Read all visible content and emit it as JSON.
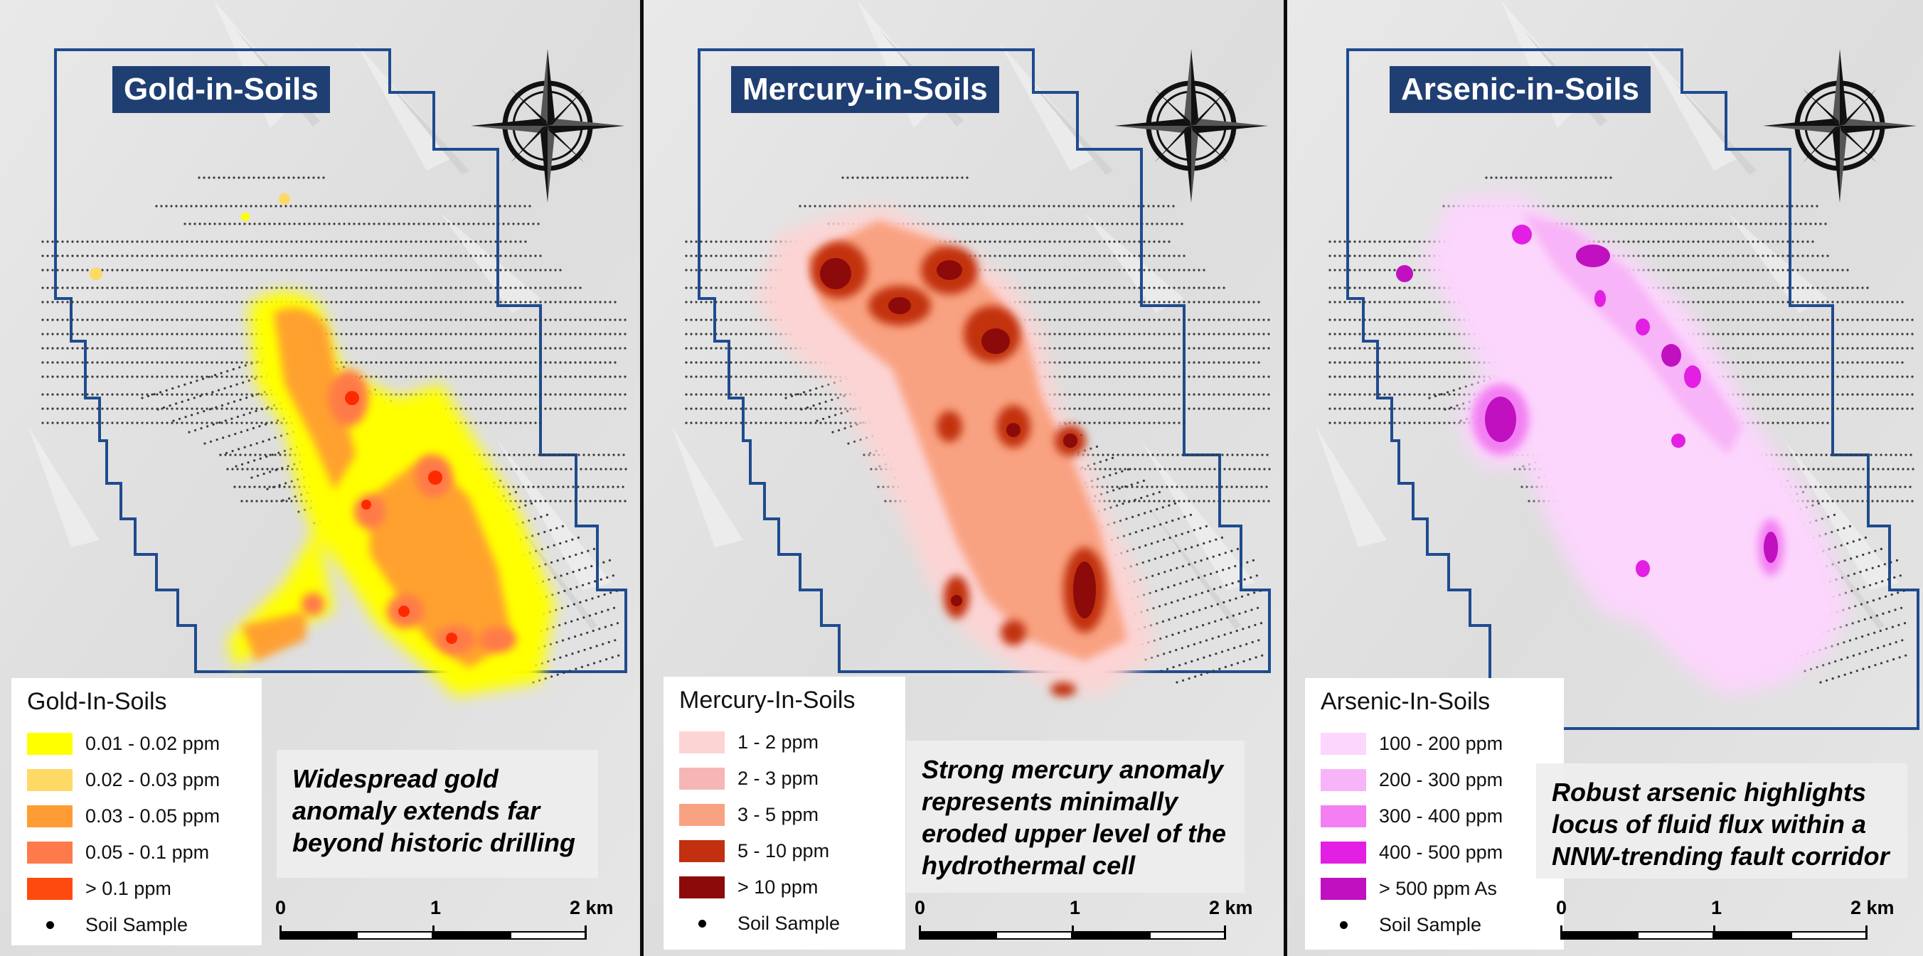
{
  "panels": [
    {
      "title": "Gold-in-Soils",
      "legend_title": "Gold-In-Soils",
      "legend": [
        {
          "label": "0.01 - 0.02 ppm",
          "color": "#ffff00"
        },
        {
          "label": "0.02 - 0.03 ppm",
          "color": "#ffd966"
        },
        {
          "label": "0.03 - 0.05 ppm",
          "color": "#ff9c33"
        },
        {
          "label": "0.05 - 0.1 ppm",
          "color": "#ff7a4a"
        },
        {
          "label": "> 0.1 ppm",
          "color": "#ff4a0f"
        }
      ],
      "soil_label": "Soil Sample",
      "note": [
        "Widespread gold",
        "anomaly extends far",
        "beyond historic drilling"
      ],
      "scale": [
        "0",
        "1",
        "2 km"
      ]
    },
    {
      "title": "Mercury-in-Soils",
      "legend_title": "Mercury-In-Soils",
      "legend": [
        {
          "label": "1 - 2 ppm",
          "color": "#fcd4d4"
        },
        {
          "label": "2 - 3 ppm",
          "color": "#f6b6b6"
        },
        {
          "label": "3 - 5 ppm",
          "color": "#f9a282"
        },
        {
          "label": "5 - 10 ppm",
          "color": "#c2300f"
        },
        {
          "label": "> 10 ppm",
          "color": "#8c0a0a"
        }
      ],
      "soil_label": "Soil Sample",
      "note": [
        "Strong mercury anomaly",
        "represents minimally",
        "eroded upper level of the",
        "hydrothermal cell"
      ],
      "scale": [
        "0",
        "1",
        "2 km"
      ]
    },
    {
      "title": "Arsenic-in-Soils",
      "legend_title": "Arsenic-In-Soils",
      "legend": [
        {
          "label": "100 - 200 ppm",
          "color": "#fcd6fc"
        },
        {
          "label": "200 - 300 ppm",
          "color": "#f8b4f8"
        },
        {
          "label": "300 - 400 ppm",
          "color": "#f37ff3"
        },
        {
          "label": "400 - 500 ppm",
          "color": "#e21fe2"
        },
        {
          "label": "> 500 ppm As",
          "color": "#c010c0"
        }
      ],
      "soil_label": "Soil Sample",
      "note": [
        "Robust arsenic highlights",
        "locus of fluid flux within a",
        "NNW-trending fault corridor"
      ],
      "scale": [
        "0",
        "1",
        "2 km"
      ]
    }
  ],
  "map_icons": [
    "north-arrow-compass-icon",
    "soil-sample-dot-icon"
  ],
  "colors": {
    "boundary": "#1f4b8f",
    "title_bg": "#1f3f73",
    "divider": "#0d0d0d"
  }
}
